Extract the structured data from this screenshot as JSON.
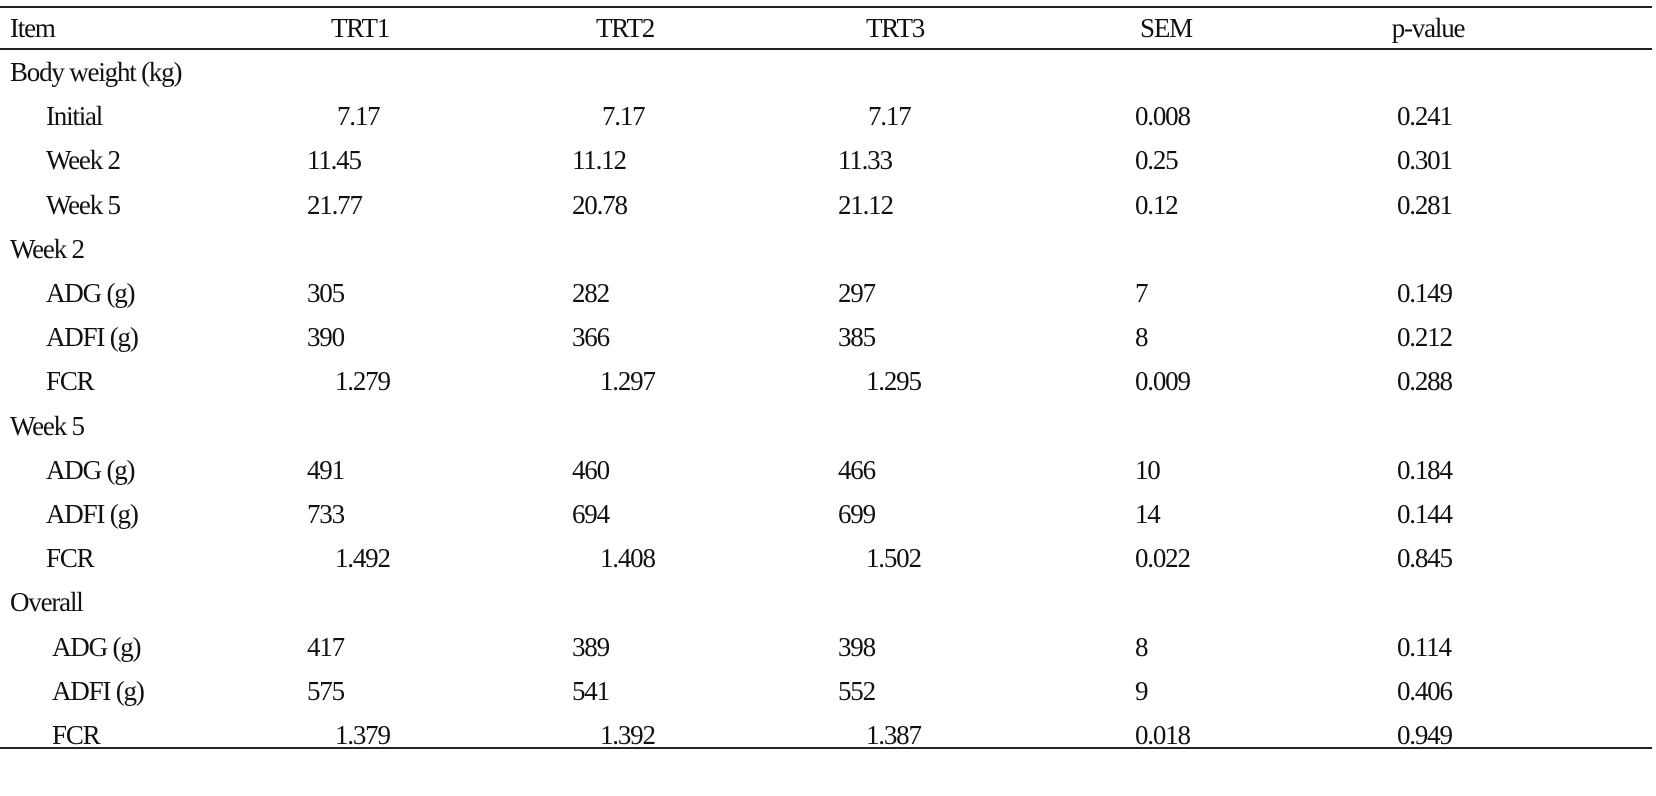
{
  "table": {
    "columns": [
      "Item",
      "TRT1",
      "TRT2",
      "TRT3",
      "SEM",
      "p-value"
    ],
    "rows": [
      {
        "label": "Body weight (kg)"
      },
      {
        "label": "Initial",
        "cells": [
          "7.17",
          "7.17",
          "7.17",
          "0.008",
          "0.241"
        ]
      },
      {
        "label": "Week 2",
        "cells": [
          "11.45",
          "11.12",
          "11.33",
          "0.25",
          "0.301"
        ]
      },
      {
        "label": "Week 5",
        "cells": [
          "21.77",
          "20.78",
          "21.12",
          "0.12",
          "0.281"
        ]
      },
      {
        "label": "Week 2"
      },
      {
        "label": "ADG (g)",
        "cells": [
          "305",
          "282",
          "297",
          "7",
          "0.149"
        ]
      },
      {
        "label": "ADFI (g)",
        "cells": [
          "390",
          "366",
          "385",
          "8",
          "0.212"
        ]
      },
      {
        "label": "FCR",
        "cells": [
          "1.279",
          "1.297",
          "1.295",
          "0.009",
          "0.288"
        ]
      },
      {
        "label": "Week 5"
      },
      {
        "label": "ADG (g)",
        "cells": [
          "491",
          "460",
          "466",
          "10",
          "0.184"
        ]
      },
      {
        "label": "ADFI (g)",
        "cells": [
          "733",
          "694",
          "699",
          "14",
          "0.144"
        ]
      },
      {
        "label": "FCR",
        "cells": [
          "1.492",
          "1.408",
          "1.502",
          "0.022",
          "0.845"
        ]
      },
      {
        "label": "Overall"
      },
      {
        "label": "ADG (g)",
        "cells": [
          "417",
          "389",
          "398",
          "8",
          "0.114"
        ]
      },
      {
        "label": "ADFI (g)",
        "cells": [
          "575",
          "541",
          "552",
          "9",
          "0.406"
        ]
      },
      {
        "label": "FCR",
        "cells": [
          "1.379",
          "1.392",
          "1.387",
          "0.018",
          "0.949"
        ]
      }
    ]
  }
}
